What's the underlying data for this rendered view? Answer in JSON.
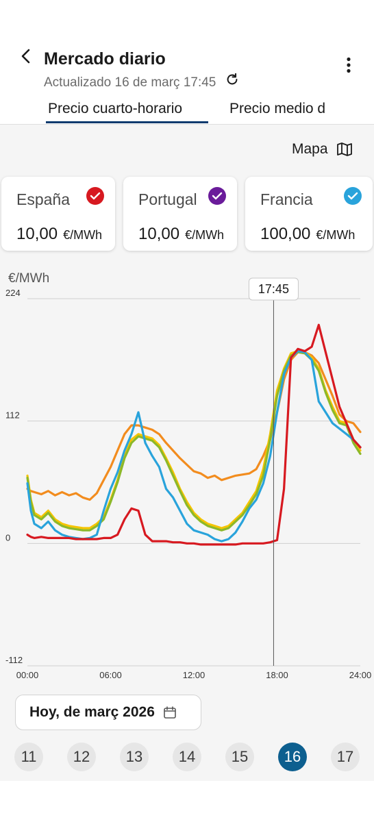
{
  "header": {
    "title": "Mercado diario",
    "subtitle": "Actualizado 16 de març 17:45",
    "back_icon": "chevron-left-icon",
    "refresh_icon": "refresh-icon",
    "more_icon": "more-vertical-icon"
  },
  "tabs": [
    {
      "label": "Precio cuarto-horario",
      "active": true
    },
    {
      "label": "Precio medio d",
      "active": false
    }
  ],
  "map_button": {
    "label": "Mapa",
    "icon": "map-icon"
  },
  "cards": [
    {
      "name": "España",
      "value": "10,00",
      "unit": "€/MWh",
      "color": "#d71920",
      "checked": true
    },
    {
      "name": "Portugal",
      "value": "10,00",
      "unit": "€/MWh",
      "color": "#6a1b9a",
      "checked": true
    },
    {
      "name": "Francia",
      "value": "100,00",
      "unit": "€/MWh",
      "color": "#29a3db",
      "checked": true
    }
  ],
  "chart_data": {
    "type": "line",
    "ylabel": "€/MWh",
    "ylim": [
      -112,
      224
    ],
    "y_ticks": [
      "224",
      "112",
      "0",
      "-112"
    ],
    "xlim": [
      0,
      24
    ],
    "x_ticks": [
      "00:00",
      "06:00",
      "12:00",
      "18:00",
      "24:00"
    ],
    "cursor": {
      "x": 17.75,
      "label": "17:45"
    },
    "grid": true,
    "series": [
      {
        "color": "#f28c1e",
        "x": [
          0,
          0.25,
          0.5,
          1,
          1.5,
          2,
          2.5,
          3,
          3.5,
          4,
          4.5,
          5,
          5.5,
          6,
          6.5,
          7,
          7.5,
          8,
          8.5,
          9,
          9.5,
          10,
          10.5,
          11,
          11.5,
          12,
          12.5,
          13,
          13.5,
          14,
          14.5,
          15,
          15.5,
          16,
          16.5,
          17,
          17.5,
          18,
          18.5,
          19,
          19.5,
          20,
          20.5,
          21,
          21.5,
          22,
          22.5,
          23,
          23.5,
          24
        ],
        "y": [
          50,
          48,
          47,
          45,
          48,
          44,
          47,
          44,
          46,
          42,
          40,
          46,
          58,
          70,
          85,
          100,
          108,
          108,
          106,
          104,
          100,
          92,
          85,
          78,
          72,
          66,
          64,
          60,
          62,
          58,
          60,
          62,
          63,
          64,
          68,
          80,
          95,
          120,
          150,
          168,
          175,
          175,
          172,
          165,
          150,
          135,
          118,
          112,
          110,
          102
        ]
      },
      {
        "color": "#f5c400",
        "x": [
          0,
          0.25,
          0.5,
          1,
          1.5,
          2,
          2.5,
          3,
          3.5,
          4,
          4.5,
          5,
          5.5,
          6,
          6.5,
          7,
          7.5,
          8,
          8.5,
          9,
          9.5,
          10,
          10.5,
          11,
          11.5,
          12,
          12.5,
          13,
          13.5,
          14,
          14.5,
          15,
          15.5,
          16,
          16.5,
          17,
          17.5,
          18,
          18.5,
          19,
          19.5,
          20,
          20.5,
          21,
          21.5,
          22,
          22.5,
          23,
          23.5,
          24
        ],
        "y": [
          62,
          40,
          28,
          24,
          30,
          22,
          18,
          16,
          15,
          14,
          14,
          18,
          24,
          40,
          58,
          80,
          95,
          100,
          98,
          96,
          90,
          78,
          65,
          50,
          38,
          28,
          22,
          18,
          16,
          14,
          16,
          22,
          28,
          38,
          48,
          68,
          100,
          140,
          160,
          174,
          176,
          175,
          170,
          160,
          140,
          125,
          112,
          110,
          95,
          85
        ]
      },
      {
        "color": "#8cb82a",
        "x": [
          0,
          0.25,
          0.5,
          1,
          1.5,
          2,
          2.5,
          3,
          3.5,
          4,
          4.5,
          5,
          5.5,
          6,
          6.5,
          7,
          7.5,
          8,
          8.5,
          9,
          9.5,
          10,
          10.5,
          11,
          11.5,
          12,
          12.5,
          13,
          13.5,
          14,
          14.5,
          15,
          15.5,
          16,
          16.5,
          17,
          17.5,
          18,
          18.5,
          19,
          19.5,
          20,
          20.5,
          21,
          21.5,
          22,
          22.5,
          23,
          23.5,
          24
        ],
        "y": [
          60,
          38,
          26,
          22,
          28,
          20,
          16,
          14,
          13,
          12,
          12,
          16,
          22,
          38,
          56,
          78,
          92,
          98,
          96,
          94,
          88,
          76,
          62,
          48,
          35,
          26,
          20,
          16,
          14,
          12,
          14,
          20,
          26,
          35,
          45,
          62,
          95,
          135,
          158,
          172,
          175,
          174,
          168,
          158,
          138,
          122,
          110,
          108,
          92,
          82
        ]
      },
      {
        "color": "#29a3db",
        "x": [
          0,
          0.25,
          0.5,
          1,
          1.5,
          2,
          2.5,
          3,
          3.5,
          4,
          4.5,
          5,
          5.5,
          6,
          6.5,
          7,
          7.5,
          8,
          8.5,
          9,
          9.5,
          10,
          10.5,
          11,
          11.5,
          12,
          12.5,
          13,
          13.5,
          14,
          14.5,
          15,
          15.5,
          16,
          16.5,
          17,
          17.5,
          18,
          18.5,
          19,
          19.5,
          20,
          20.5,
          21,
          21.5,
          22,
          22.5,
          23,
          23.5,
          24
        ],
        "y": [
          55,
          30,
          18,
          14,
          20,
          12,
          8,
          6,
          5,
          4,
          5,
          8,
          30,
          50,
          65,
          85,
          100,
          120,
          92,
          80,
          70,
          50,
          42,
          30,
          18,
          12,
          10,
          8,
          4,
          2,
          4,
          10,
          20,
          32,
          40,
          55,
          80,
          120,
          155,
          170,
          176,
          175,
          168,
          130,
          120,
          110,
          105,
          100,
          95,
          88
        ]
      },
      {
        "color": "#d71920",
        "x": [
          0,
          0.25,
          0.5,
          1,
          1.5,
          2,
          2.5,
          3,
          3.5,
          4,
          4.5,
          5,
          5.5,
          6,
          6.5,
          7,
          7.5,
          8,
          8.5,
          9,
          9.5,
          10,
          10.5,
          11,
          11.5,
          12,
          12.5,
          13,
          13.5,
          14,
          14.5,
          15,
          15.5,
          16,
          16.5,
          17,
          17.5,
          18,
          18.5,
          19,
          19.5,
          20,
          20.5,
          21,
          21.5,
          22,
          22.5,
          23,
          23.5,
          24
        ],
        "y": [
          8,
          6,
          5,
          6,
          5,
          5,
          5,
          5,
          4,
          4,
          4,
          4,
          5,
          5,
          8,
          22,
          32,
          30,
          8,
          2,
          2,
          2,
          1,
          1,
          0,
          0,
          -1,
          -1,
          -1,
          -1,
          -1,
          -1,
          0,
          0,
          0,
          0,
          1,
          3,
          50,
          170,
          178,
          176,
          180,
          200,
          175,
          150,
          125,
          110,
          95,
          88
        ]
      }
    ]
  },
  "date_selector": {
    "label": "Hoy, de març 2026",
    "icon": "calendar-icon"
  },
  "days": [
    {
      "label": "11",
      "active": false
    },
    {
      "label": "12",
      "active": false
    },
    {
      "label": "13",
      "active": false
    },
    {
      "label": "14",
      "active": false
    },
    {
      "label": "15",
      "active": false
    },
    {
      "label": "16",
      "active": true
    },
    {
      "label": "17",
      "active": false
    }
  ]
}
